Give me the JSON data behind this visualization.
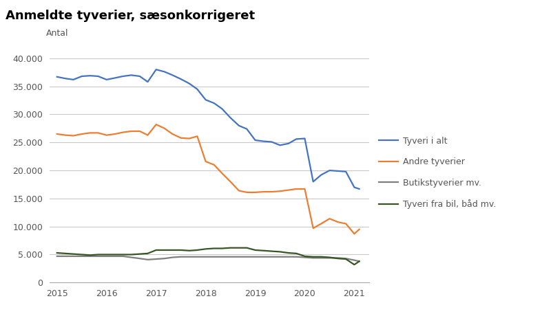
{
  "title": "Anmeldte tyverier, sæsonkorrigeret",
  "antal_label": "Antal",
  "background_color": "#ffffff",
  "grid_color": "#c8c8c8",
  "xlim": [
    2014.85,
    2021.3
  ],
  "ylim": [
    0,
    42000
  ],
  "yticks": [
    0,
    5000,
    10000,
    15000,
    20000,
    25000,
    30000,
    35000,
    40000
  ],
  "xticks": [
    2015,
    2016,
    2017,
    2018,
    2019,
    2020,
    2021
  ],
  "series": {
    "Tyveri i alt": {
      "color": "#4472C4",
      "data_x": [
        2015.0,
        2015.17,
        2015.33,
        2015.5,
        2015.67,
        2015.83,
        2016.0,
        2016.17,
        2016.33,
        2016.5,
        2016.67,
        2016.83,
        2017.0,
        2017.17,
        2017.33,
        2017.5,
        2017.67,
        2017.83,
        2018.0,
        2018.17,
        2018.33,
        2018.5,
        2018.67,
        2018.83,
        2019.0,
        2019.17,
        2019.33,
        2019.5,
        2019.67,
        2019.83,
        2020.0,
        2020.17,
        2020.33,
        2020.5,
        2020.67,
        2020.83,
        2021.0,
        2021.1
      ],
      "data_y": [
        36700,
        36400,
        36200,
        36800,
        36900,
        36800,
        36200,
        36500,
        36800,
        37000,
        36800,
        35800,
        38000,
        37600,
        37000,
        36300,
        35500,
        34500,
        32600,
        32000,
        31000,
        29400,
        28000,
        27400,
        25400,
        25200,
        25100,
        24500,
        24800,
        25600,
        25700,
        18000,
        19200,
        20000,
        19900,
        19800,
        17000,
        16700
      ]
    },
    "Andre tyverier": {
      "color": "#ED7D31",
      "data_x": [
        2015.0,
        2015.17,
        2015.33,
        2015.5,
        2015.67,
        2015.83,
        2016.0,
        2016.17,
        2016.33,
        2016.5,
        2016.67,
        2016.83,
        2017.0,
        2017.17,
        2017.33,
        2017.5,
        2017.67,
        2017.83,
        2018.0,
        2018.17,
        2018.33,
        2018.5,
        2018.67,
        2018.83,
        2019.0,
        2019.17,
        2019.33,
        2019.5,
        2019.67,
        2019.83,
        2020.0,
        2020.17,
        2020.33,
        2020.5,
        2020.67,
        2020.83,
        2021.0,
        2021.1
      ],
      "data_y": [
        26500,
        26300,
        26200,
        26500,
        26700,
        26700,
        26300,
        26500,
        26800,
        27000,
        27000,
        26300,
        28200,
        27500,
        26500,
        25800,
        25700,
        26100,
        21600,
        21000,
        19500,
        18000,
        16400,
        16100,
        16100,
        16200,
        16200,
        16300,
        16500,
        16700,
        16700,
        9700,
        10500,
        11400,
        10800,
        10500,
        8700,
        9500
      ]
    },
    "Butikstyverier mv.": {
      "color": "#7F7F7F",
      "data_x": [
        2015.0,
        2015.17,
        2015.33,
        2015.5,
        2015.67,
        2015.83,
        2016.0,
        2016.17,
        2016.33,
        2016.5,
        2016.67,
        2016.83,
        2017.0,
        2017.17,
        2017.33,
        2017.5,
        2017.67,
        2017.83,
        2018.0,
        2018.17,
        2018.33,
        2018.5,
        2018.67,
        2018.83,
        2019.0,
        2019.17,
        2019.33,
        2019.5,
        2019.67,
        2019.83,
        2020.0,
        2020.17,
        2020.33,
        2020.5,
        2020.67,
        2020.83,
        2021.0,
        2021.1
      ],
      "data_y": [
        4700,
        4700,
        4700,
        4700,
        4700,
        4700,
        4700,
        4700,
        4700,
        4500,
        4300,
        4100,
        4200,
        4300,
        4500,
        4600,
        4600,
        4600,
        4600,
        4600,
        4600,
        4600,
        4600,
        4600,
        4600,
        4600,
        4600,
        4600,
        4600,
        4600,
        4500,
        4400,
        4400,
        4400,
        4400,
        4300,
        4000,
        3800
      ]
    },
    "Tyveri fra bil, båd mv.": {
      "color": "#375623",
      "data_x": [
        2015.0,
        2015.17,
        2015.33,
        2015.5,
        2015.67,
        2015.83,
        2016.0,
        2016.17,
        2016.33,
        2016.5,
        2016.67,
        2016.83,
        2017.0,
        2017.17,
        2017.33,
        2017.5,
        2017.67,
        2017.83,
        2018.0,
        2018.17,
        2018.33,
        2018.5,
        2018.67,
        2018.83,
        2019.0,
        2019.17,
        2019.33,
        2019.5,
        2019.67,
        2019.83,
        2020.0,
        2020.17,
        2020.33,
        2020.5,
        2020.67,
        2020.83,
        2021.0,
        2021.1
      ],
      "data_y": [
        5300,
        5200,
        5100,
        5000,
        4900,
        5000,
        5000,
        5000,
        5000,
        5000,
        5100,
        5200,
        5800,
        5800,
        5800,
        5800,
        5700,
        5800,
        6000,
        6100,
        6100,
        6200,
        6200,
        6200,
        5800,
        5700,
        5600,
        5500,
        5300,
        5200,
        4700,
        4600,
        4600,
        4500,
        4300,
        4200,
        3200,
        3800
      ]
    }
  },
  "legend_order": [
    "Tyveri i alt",
    "Andre tyverier",
    "Butikstyverier mv.",
    "Tyveri fra bil, båd mv."
  ]
}
